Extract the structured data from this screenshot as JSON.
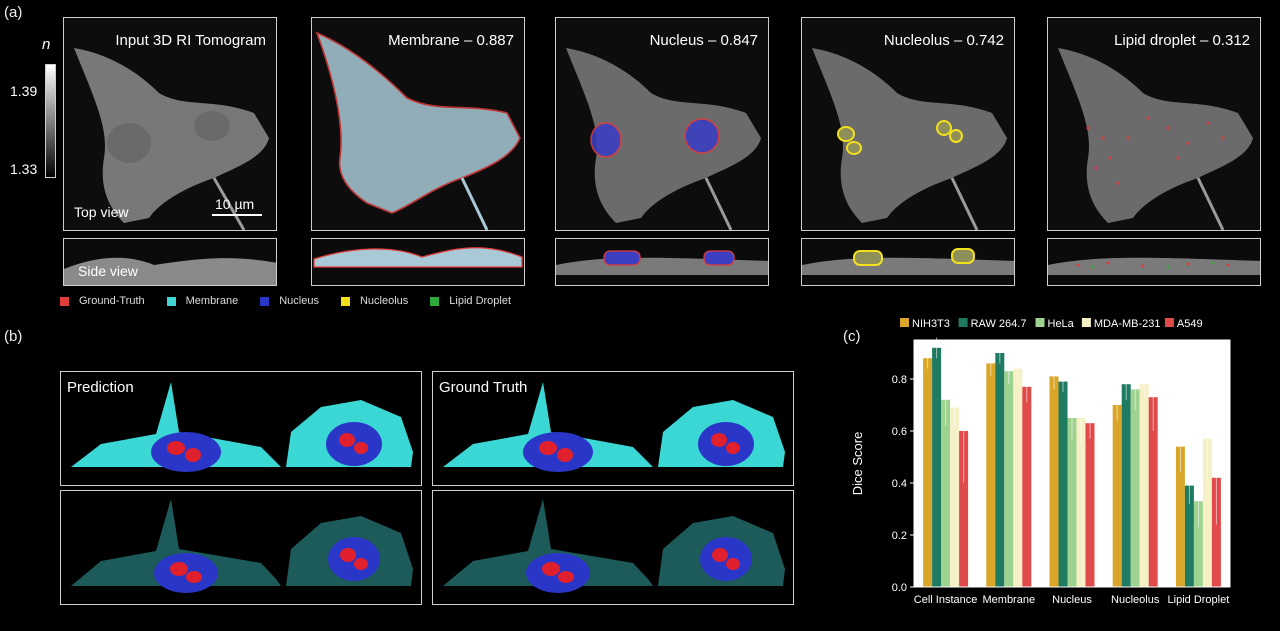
{
  "panel_a": {
    "letter": "(a)",
    "colorbar": {
      "symbol": "n",
      "max": "1.39",
      "min": "1.33"
    },
    "tiles": [
      {
        "title": "Input 3D RI Tomogram",
        "top_label": "Top view",
        "scalebar": "10 µm",
        "side_label": "Side view"
      },
      {
        "title": "Membrane – 0.887"
      },
      {
        "title": "Nucleus – 0.847"
      },
      {
        "title": "Nucleolus – 0.742"
      },
      {
        "title": "Lipid droplet – 0.312"
      }
    ],
    "legend": [
      {
        "label": "Ground-Truth",
        "color": "#e03c3c"
      },
      {
        "label": "Membrane",
        "color": "#3fd6d1"
      },
      {
        "label": "Nucleus",
        "color": "#2a36c8"
      },
      {
        "label": "Nucleolus",
        "color": "#f2e01c"
      },
      {
        "label": "Lipid Droplet",
        "color": "#2fa83a"
      }
    ]
  },
  "panel_b": {
    "letter": "(b)",
    "prediction_label": "Prediction",
    "ground_truth_label": "Ground Truth"
  },
  "chart_data": {
    "panel_letter": "(c)",
    "type": "bar",
    "categories": [
      "Cell Instance",
      "Membrane",
      "Nucleus",
      "Nucleolus",
      "Lipid Droplet"
    ],
    "series": [
      {
        "name": "NIH3T3",
        "color": "#d9a62a",
        "values": [
          0.88,
          0.86,
          0.81,
          0.7,
          0.54
        ],
        "err": [
          0.04,
          0.05,
          0.05,
          0.06,
          0.1
        ]
      },
      {
        "name": "RAW 264.7",
        "color": "#1f7a62",
        "values": [
          0.92,
          0.9,
          0.79,
          0.78,
          0.39
        ],
        "err": [
          0.04,
          0.04,
          0.04,
          0.06,
          0.07
        ]
      },
      {
        "name": "HeLa",
        "color": "#9ed28f",
        "values": [
          0.72,
          0.83,
          0.65,
          0.76,
          0.33
        ],
        "err": [
          0.1,
          0.05,
          0.08,
          0.08,
          0.1
        ]
      },
      {
        "name": "MDA-MB-231",
        "color": "#f6f0c6",
        "values": [
          0.69,
          0.84,
          0.65,
          0.78,
          0.57
        ],
        "err": [
          0.08,
          0.05,
          0.1,
          0.05,
          0.17
        ]
      },
      {
        "name": "A549",
        "color": "#e04a4a",
        "values": [
          0.6,
          0.77,
          0.63,
          0.73,
          0.42
        ],
        "err": [
          0.2,
          0.06,
          0.06,
          0.13,
          0.18
        ]
      }
    ],
    "ylabel": "Dice Score",
    "ylim": [
      0,
      0.95
    ],
    "yticks": [
      "0.0",
      "0.2",
      "0.4",
      "0.6",
      "0.8"
    ],
    "legend_position": "top"
  }
}
